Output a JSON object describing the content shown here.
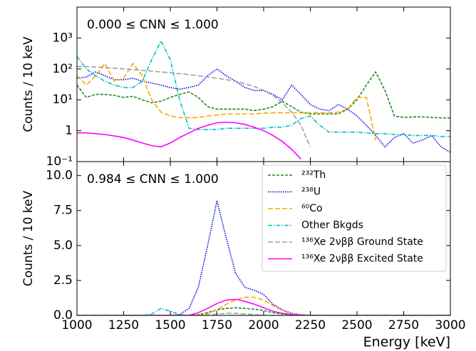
{
  "chart_data": [
    {
      "type": "line",
      "annotation": "0.000 ≤ CNN ≤ 1.000",
      "ylabel": "Counts / 10 keV",
      "yscale": "log",
      "xtick_labels": false,
      "x": [
        1000,
        1050,
        1100,
        1150,
        1200,
        1250,
        1300,
        1350,
        1400,
        1450,
        1500,
        1550,
        1600,
        1650,
        1700,
        1750,
        1800,
        1850,
        1900,
        1950,
        2000,
        2050,
        2100,
        2150,
        2200,
        2250,
        2300,
        2350,
        2400,
        2450,
        2500,
        2550,
        2600,
        2650,
        2700,
        2750,
        2800,
        2850,
        2900,
        2950,
        3000
      ],
      "xlim": [
        1000,
        3000
      ],
      "xticks": [
        1000,
        1250,
        1500,
        1750,
        2000,
        2250,
        2500,
        2750,
        3000
      ],
      "ylim": [
        0.1,
        10000
      ],
      "yticks": [
        {
          "value": 0.1,
          "label": "10⁻¹"
        },
        1,
        {
          "value": 10,
          "label": "10¹"
        },
        {
          "value": 100,
          "label": "10²"
        },
        {
          "value": 1000,
          "label": "10³"
        }
      ],
      "series": [
        {
          "color": "#1f8a1f",
          "linestyle": "dashed",
          "values": [
            30,
            12,
            15,
            15,
            14,
            12,
            13,
            10,
            8,
            9,
            12,
            15,
            18,
            12,
            6,
            5,
            5,
            5,
            5,
            4.5,
            5,
            6,
            9,
            6,
            4,
            3.5,
            3.5,
            3.5,
            3.5,
            5,
            10,
            30,
            80,
            20,
            3,
            2.7,
            2.8,
            2.8,
            2.7,
            2.6,
            2.6
          ]
        },
        {
          "color": "#0000ee",
          "linestyle": "dotted",
          "values": [
            50,
            55,
            80,
            60,
            45,
            45,
            50,
            40,
            35,
            30,
            25,
            22,
            25,
            30,
            60,
            100,
            60,
            40,
            25,
            20,
            20,
            15,
            10,
            30,
            15,
            7,
            5,
            4.5,
            7,
            5,
            3,
            1.5,
            0.7,
            0.3,
            0.6,
            0.8,
            0.4,
            0.5,
            0.7,
            0.3,
            0.2
          ]
        },
        {
          "color": "#ffa500",
          "linestyle": "longdash",
          "values": [
            60,
            30,
            60,
            150,
            40,
            50,
            150,
            60,
            10,
            4,
            3,
            2.7,
            2.6,
            2.7,
            3,
            3.2,
            3.5,
            3.5,
            3.5,
            3.5,
            3.7,
            3.8,
            3.8,
            3.8,
            3.8,
            3.8,
            3.8,
            3.8,
            4,
            5,
            12,
            12,
            0.5,
            null,
            null,
            null,
            null,
            null,
            null,
            null,
            null
          ]
        },
        {
          "color": "#00bfbf",
          "linestyle": "dashdot",
          "values": [
            250,
            100,
            60,
            40,
            30,
            25,
            25,
            40,
            200,
            800,
            200,
            10,
            1.2,
            1.1,
            1.1,
            1.1,
            1.2,
            1.2,
            1.2,
            1.2,
            1.2,
            1.3,
            1.3,
            1.5,
            2.5,
            3,
            1.5,
            0.9,
            0.9,
            0.9,
            0.9,
            0.85,
            0.8,
            0.8,
            0.75,
            0.75,
            0.7,
            0.7,
            0.7,
            0.65,
            0.65
          ]
        },
        {
          "color": "#a0a0a0",
          "linestyle": "longdash",
          "values": [
            120,
            120,
            115,
            110,
            105,
            100,
            95,
            90,
            85,
            80,
            75,
            70,
            65,
            60,
            55,
            50,
            45,
            40,
            33,
            27,
            20,
            14,
            8,
            4,
            1.5,
            0.3,
            null,
            null,
            null,
            null,
            null,
            null,
            null,
            null,
            null,
            null,
            null,
            null,
            null,
            null,
            null
          ]
        },
        {
          "color": "#ff00ff",
          "linestyle": "solid",
          "values": [
            0.85,
            0.85,
            0.8,
            0.75,
            0.68,
            0.6,
            0.5,
            0.4,
            0.33,
            0.3,
            0.4,
            0.6,
            0.85,
            1.2,
            1.5,
            1.8,
            1.9,
            1.8,
            1.6,
            1.3,
            1,
            0.7,
            0.45,
            0.25,
            0.12,
            null,
            null,
            null,
            null,
            null,
            null,
            null,
            null,
            null,
            null,
            null,
            null,
            null,
            null,
            null,
            null
          ]
        }
      ]
    },
    {
      "type": "line",
      "annotation": "0.984 ≤ CNN ≤ 1.000",
      "ylabel": "Counts / 10 keV",
      "xlabel": "Energy [keV]",
      "yscale": "linear",
      "xtick_labels": true,
      "legend": "upper right",
      "x": [
        1000,
        1050,
        1100,
        1150,
        1200,
        1250,
        1300,
        1350,
        1400,
        1450,
        1500,
        1550,
        1600,
        1650,
        1700,
        1750,
        1800,
        1850,
        1900,
        1950,
        2000,
        2050,
        2100,
        2150,
        2200,
        2250,
        2300,
        2350,
        2400,
        2450,
        2500,
        2550,
        2600,
        2650,
        2700,
        2750,
        2800,
        2850,
        2900,
        2950,
        3000
      ],
      "xlim": [
        1000,
        3000
      ],
      "xticks": [
        1000,
        1250,
        1500,
        1750,
        2000,
        2250,
        2500,
        2750,
        3000
      ],
      "ylim": [
        0,
        11
      ],
      "yticks": [
        {
          "value": 0,
          "label": "0.0"
        },
        2.5,
        {
          "value": 5,
          "label": "5.0"
        },
        7.5,
        {
          "value": 10,
          "label": "10.0"
        }
      ],
      "series": [
        {
          "name": "²³²Th",
          "color": "#1f8a1f",
          "linestyle": "dashed",
          "values": [
            0,
            0,
            0,
            0,
            0,
            0,
            0,
            0,
            0,
            0,
            0,
            0,
            0,
            0.05,
            0.2,
            0.4,
            0.5,
            0.55,
            0.5,
            0.45,
            0.35,
            0.2,
            0.1,
            0.03,
            0,
            0,
            0,
            0,
            0,
            0,
            0,
            0,
            0,
            0,
            0,
            0,
            0,
            0,
            0,
            0,
            0
          ]
        },
        {
          "name": "²³⁸U",
          "color": "#0000ee",
          "linestyle": "dotted",
          "values": [
            0,
            0,
            0,
            0,
            0,
            0,
            0,
            0,
            0,
            0,
            0,
            0.05,
            0.5,
            2,
            5,
            8.2,
            5.5,
            3,
            2,
            1.8,
            1.5,
            0.8,
            0.4,
            0.15,
            0.05,
            0,
            0,
            0,
            0,
            0,
            0,
            0,
            0,
            0,
            0,
            0,
            0,
            0,
            0,
            0,
            0
          ]
        },
        {
          "name": "⁶⁰Co",
          "color": "#ffa500",
          "linestyle": "longdash",
          "values": [
            0,
            0,
            0,
            0,
            0,
            0,
            0,
            0,
            0,
            0,
            0,
            0,
            0,
            0,
            0.1,
            0.4,
            0.8,
            1.1,
            1.3,
            1.3,
            1.1,
            0.7,
            0.35,
            0.1,
            0.03,
            0,
            0,
            0,
            0,
            0,
            0,
            0,
            0,
            0,
            0,
            0,
            0,
            0,
            0,
            0,
            0
          ]
        },
        {
          "name": "Other Bkgds",
          "color": "#00bfbf",
          "linestyle": "dashdot",
          "values": [
            0,
            0,
            0,
            0,
            0,
            0,
            0,
            0,
            0.1,
            0.5,
            0.3,
            0.05,
            0,
            0,
            0,
            0,
            0,
            0,
            0,
            0,
            0,
            0,
            0,
            0,
            0,
            0,
            0,
            0,
            0,
            0,
            0,
            0,
            0,
            0,
            0,
            0,
            0,
            0,
            0,
            0,
            0
          ]
        },
        {
          "name": "¹³⁶Xe 2νββ Ground State",
          "color": "#a0a0a0",
          "linestyle": "longdash",
          "values": [
            0,
            0,
            0,
            0,
            0,
            0,
            0,
            0,
            0,
            0,
            0,
            0,
            0,
            0,
            0,
            0.1,
            0.15,
            0.15,
            0.1,
            0.05,
            0,
            0,
            0,
            0,
            0,
            0,
            0,
            0,
            0,
            0,
            0,
            0,
            0,
            0,
            0,
            0,
            0,
            0,
            0,
            0,
            0
          ]
        },
        {
          "name": "¹³⁶Xe 2νββ Excited State",
          "color": "#ff00ff",
          "linestyle": "solid",
          "values": [
            0,
            0,
            0,
            0,
            0,
            0,
            0,
            0,
            0,
            0,
            0,
            0,
            0,
            0.2,
            0.5,
            0.85,
            1.1,
            1.15,
            1,
            0.8,
            0.55,
            0.3,
            0.15,
            0.05,
            0,
            0,
            0,
            0,
            0,
            0,
            0,
            0,
            0,
            0,
            0,
            0,
            0,
            0,
            0,
            0,
            0
          ]
        }
      ]
    }
  ]
}
